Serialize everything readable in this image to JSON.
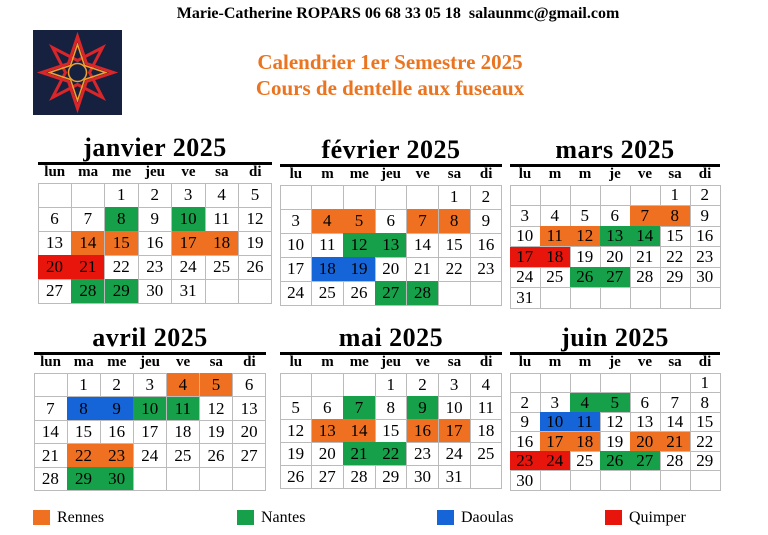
{
  "header": {
    "contact": "Marie-Catherine ROPARS 06 68 33 05 18  salaunmc@gmail.com",
    "title": "Calendrier  1er Semestre 2025",
    "subtitle": "Cours de dentelle aux fuseaux"
  },
  "months": [
    {
      "title": "janvier 2025",
      "weekdays": [
        "lun",
        "ma",
        "me",
        "jeu",
        "ve",
        "sa",
        "di"
      ],
      "weeks": [
        [
          null,
          null,
          1,
          2,
          3,
          4,
          5
        ],
        [
          6,
          7,
          {
            "day": 8,
            "color": "#17a04a"
          },
          9,
          {
            "day": 10,
            "color": "#17a04a"
          },
          11,
          12
        ],
        [
          13,
          {
            "day": 14,
            "color": "#f07022"
          },
          {
            "day": 15,
            "color": "#f07022"
          },
          16,
          {
            "day": 17,
            "color": "#f07022"
          },
          {
            "day": 18,
            "color": "#f07022"
          },
          19
        ],
        [
          {
            "day": 20,
            "color": "#e8150c"
          },
          {
            "day": 21,
            "color": "#e8150c"
          },
          22,
          23,
          24,
          25,
          26
        ],
        [
          27,
          {
            "day": 28,
            "color": "#17a04a"
          },
          {
            "day": 29,
            "color": "#17a04a"
          },
          30,
          31,
          null,
          null
        ]
      ]
    },
    {
      "title": "février 2025",
      "weekdays": [
        "lu",
        "m",
        "me",
        "jeu",
        "ve",
        "sa",
        "di"
      ],
      "weeks": [
        [
          null,
          null,
          null,
          null,
          null,
          1,
          2
        ],
        [
          3,
          {
            "day": 4,
            "color": "#f07022"
          },
          {
            "day": 5,
            "color": "#f07022"
          },
          6,
          {
            "day": 7,
            "color": "#f07022"
          },
          {
            "day": 8,
            "color": "#f07022"
          },
          9
        ],
        [
          10,
          11,
          {
            "day": 12,
            "color": "#17a04a"
          },
          {
            "day": 13,
            "color": "#17a04a"
          },
          14,
          15,
          16
        ],
        [
          17,
          {
            "day": 18,
            "color": "#1565d8"
          },
          {
            "day": 19,
            "color": "#1565d8"
          },
          20,
          21,
          22,
          23
        ],
        [
          24,
          25,
          26,
          {
            "day": 27,
            "color": "#17a04a"
          },
          {
            "day": 28,
            "color": "#17a04a"
          },
          null,
          null
        ]
      ]
    },
    {
      "title": "mars 2025",
      "weekdays": [
        "lu",
        "m",
        "m",
        "je",
        "ve",
        "sa",
        "di"
      ],
      "weeks": [
        [
          null,
          null,
          null,
          null,
          null,
          1,
          2
        ],
        [
          3,
          4,
          5,
          6,
          {
            "day": 7,
            "color": "#f07022"
          },
          {
            "day": 8,
            "color": "#f07022"
          },
          9
        ],
        [
          10,
          {
            "day": 11,
            "color": "#f07022"
          },
          {
            "day": 12,
            "color": "#f07022"
          },
          {
            "day": 13,
            "color": "#17a04a"
          },
          {
            "day": 14,
            "color": "#17a04a"
          },
          15,
          16
        ],
        [
          {
            "day": 17,
            "color": "#e8150c"
          },
          {
            "day": 18,
            "color": "#e8150c"
          },
          19,
          20,
          21,
          22,
          23
        ],
        [
          24,
          25,
          {
            "day": 26,
            "color": "#17a04a"
          },
          {
            "day": 27,
            "color": "#17a04a"
          },
          28,
          29,
          30
        ],
        [
          31,
          null,
          null,
          null,
          null,
          null,
          null
        ]
      ]
    },
    {
      "title": "avril 2025",
      "weekdays": [
        "lun",
        "ma",
        "me",
        "jeu",
        "ve",
        "sa",
        "di"
      ],
      "weeks": [
        [
          null,
          1,
          2,
          3,
          {
            "day": 4,
            "color": "#f07022"
          },
          {
            "day": 5,
            "color": "#f07022"
          },
          6
        ],
        [
          7,
          {
            "day": 8,
            "color": "#1565d8"
          },
          {
            "day": 9,
            "color": "#1565d8"
          },
          {
            "day": 10,
            "color": "#17a04a"
          },
          {
            "day": 11,
            "color": "#17a04a"
          },
          12,
          13
        ],
        [
          14,
          15,
          16,
          17,
          18,
          19,
          20
        ],
        [
          21,
          {
            "day": 22,
            "color": "#f07022"
          },
          {
            "day": 23,
            "color": "#f07022"
          },
          24,
          25,
          26,
          27
        ],
        [
          28,
          {
            "day": 29,
            "color": "#17a04a"
          },
          {
            "day": 30,
            "color": "#17a04a"
          },
          null,
          null,
          null,
          null
        ]
      ]
    },
    {
      "title": "mai 2025",
      "weekdays": [
        "lu",
        "m",
        "me",
        "jeu",
        "ve",
        "sa",
        "di"
      ],
      "weeks": [
        [
          null,
          null,
          null,
          1,
          2,
          3,
          4
        ],
        [
          5,
          6,
          {
            "day": 7,
            "color": "#17a04a"
          },
          8,
          {
            "day": 9,
            "color": "#17a04a"
          },
          10,
          11
        ],
        [
          12,
          {
            "day": 13,
            "color": "#f07022"
          },
          {
            "day": 14,
            "color": "#f07022"
          },
          15,
          {
            "day": 16,
            "color": "#f07022"
          },
          {
            "day": 17,
            "color": "#f07022"
          },
          18
        ],
        [
          19,
          20,
          {
            "day": 21,
            "color": "#17a04a"
          },
          {
            "day": 22,
            "color": "#17a04a"
          },
          23,
          24,
          25
        ],
        [
          26,
          27,
          28,
          29,
          30,
          31,
          null
        ]
      ]
    },
    {
      "title": "juin 2025",
      "weekdays": [
        "lu",
        "m",
        "m",
        "je",
        "ve",
        "sa",
        "di"
      ],
      "weeks": [
        [
          null,
          null,
          null,
          null,
          null,
          null,
          1
        ],
        [
          2,
          3,
          {
            "day": 4,
            "color": "#17a04a"
          },
          {
            "day": 5,
            "color": "#17a04a"
          },
          6,
          7,
          8
        ],
        [
          9,
          {
            "day": 10,
            "color": "#1565d8"
          },
          {
            "day": 11,
            "color": "#1565d8"
          },
          12,
          13,
          14,
          15
        ],
        [
          16,
          {
            "day": 17,
            "color": "#f07022"
          },
          {
            "day": 18,
            "color": "#f07022"
          },
          19,
          {
            "day": 20,
            "color": "#f07022"
          },
          {
            "day": 21,
            "color": "#f07022"
          },
          22
        ],
        [
          {
            "day": 23,
            "color": "#e8150c"
          },
          {
            "day": 24,
            "color": "#e8150c"
          },
          25,
          {
            "day": 26,
            "color": "#17a04a"
          },
          {
            "day": 27,
            "color": "#17a04a"
          },
          28,
          29
        ],
        [
          30,
          null,
          null,
          null,
          null,
          null,
          null
        ]
      ]
    }
  ],
  "legend": [
    {
      "label": "Rennes",
      "color": "#f07022"
    },
    {
      "label": "Nantes",
      "color": "#17a04a"
    },
    {
      "label": "Daoulas",
      "color": "#1565d8"
    },
    {
      "label": "Quimper",
      "color": "#e8150c"
    }
  ]
}
